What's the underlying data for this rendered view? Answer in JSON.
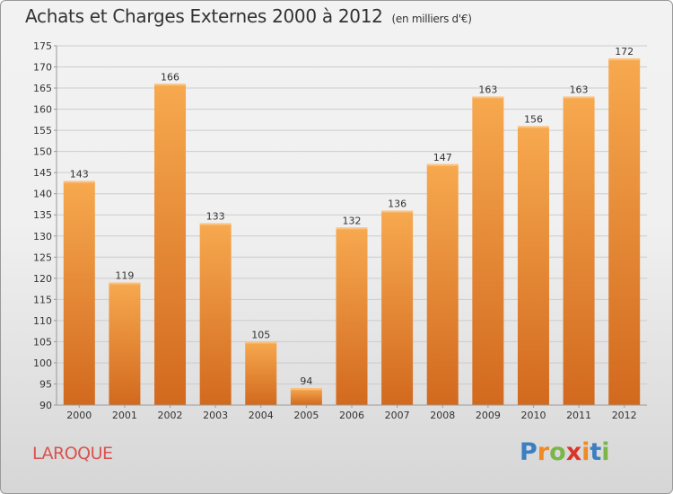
{
  "header": {
    "title": "Achats et Charges Externes 2000 à 2012",
    "subtitle": "(en milliers d'€)"
  },
  "footer": {
    "commune": "LAROQUE",
    "brand": "Proxiti",
    "brand_letters": [
      {
        "char": "P",
        "color": "#3a7fc2"
      },
      {
        "char": "r",
        "color": "#f08a24"
      },
      {
        "char": "o",
        "color": "#7ab648"
      },
      {
        "char": "x",
        "color": "#d9352b"
      },
      {
        "char": "i",
        "color": "#f08a24"
      },
      {
        "char": "t",
        "color": "#3a7fc2"
      },
      {
        "char": "i",
        "color": "#7ab648"
      }
    ]
  },
  "colors": {
    "bar_top": "#f7a94f",
    "bar_bottom": "#d2691e",
    "grid": "#cccccc",
    "axis": "#999999"
  },
  "chart_data": {
    "type": "bar",
    "title": "Achats et Charges Externes 2000 à 2012",
    "subtitle": "(en milliers d'€)",
    "xlabel": "",
    "ylabel": "",
    "categories": [
      "2000",
      "2001",
      "2002",
      "2003",
      "2004",
      "2005",
      "2006",
      "2007",
      "2008",
      "2009",
      "2010",
      "2011",
      "2012"
    ],
    "values": [
      143,
      119,
      166,
      133,
      105,
      94,
      132,
      136,
      147,
      163,
      156,
      163,
      172
    ],
    "ylim": [
      90,
      175
    ],
    "yticks": [
      90,
      95,
      100,
      105,
      110,
      115,
      120,
      125,
      130,
      135,
      140,
      145,
      150,
      155,
      160,
      165,
      170,
      175
    ],
    "grid": true
  }
}
